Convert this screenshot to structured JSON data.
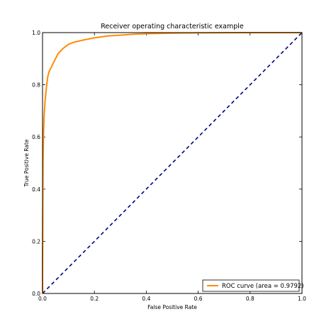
{
  "chart_data": {
    "type": "line",
    "title": "Receiver operating characteristic example",
    "xlabel": "False Positive Rate",
    "ylabel": "True Positive Rate",
    "xlim": [
      0,
      1
    ],
    "ylim": [
      0,
      1
    ],
    "xticks": [
      "0.0",
      "0.2",
      "0.4",
      "0.6",
      "0.8",
      "1.0"
    ],
    "yticks": [
      "0.0",
      "0.2",
      "0.4",
      "0.6",
      "0.8",
      "1.0"
    ],
    "grid": false,
    "legend_position": "lower right",
    "series": [
      {
        "name": "ROC curve (area = 0.9792)",
        "color": "#ff8c00",
        "style": "solid",
        "x": [
          0.0,
          0.0,
          0.002,
          0.004,
          0.006,
          0.008,
          0.01,
          0.015,
          0.02,
          0.025,
          0.03,
          0.04,
          0.05,
          0.06,
          0.07,
          0.08,
          0.1,
          0.12,
          0.15,
          0.2,
          0.25,
          0.3,
          0.35,
          0.4,
          0.5,
          0.6,
          0.7,
          0.8,
          0.9,
          1.0
        ],
        "y": [
          0.0,
          0.1,
          0.5,
          0.62,
          0.68,
          0.71,
          0.74,
          0.79,
          0.83,
          0.85,
          0.86,
          0.88,
          0.9,
          0.92,
          0.93,
          0.94,
          0.955,
          0.963,
          0.97,
          0.98,
          0.987,
          0.99,
          0.994,
          0.996,
          0.998,
          0.999,
          0.9995,
          1.0,
          1.0,
          1.0
        ]
      },
      {
        "name": "",
        "color": "#000080",
        "style": "dashed",
        "x": [
          0,
          1
        ],
        "y": [
          0,
          1
        ]
      }
    ]
  }
}
